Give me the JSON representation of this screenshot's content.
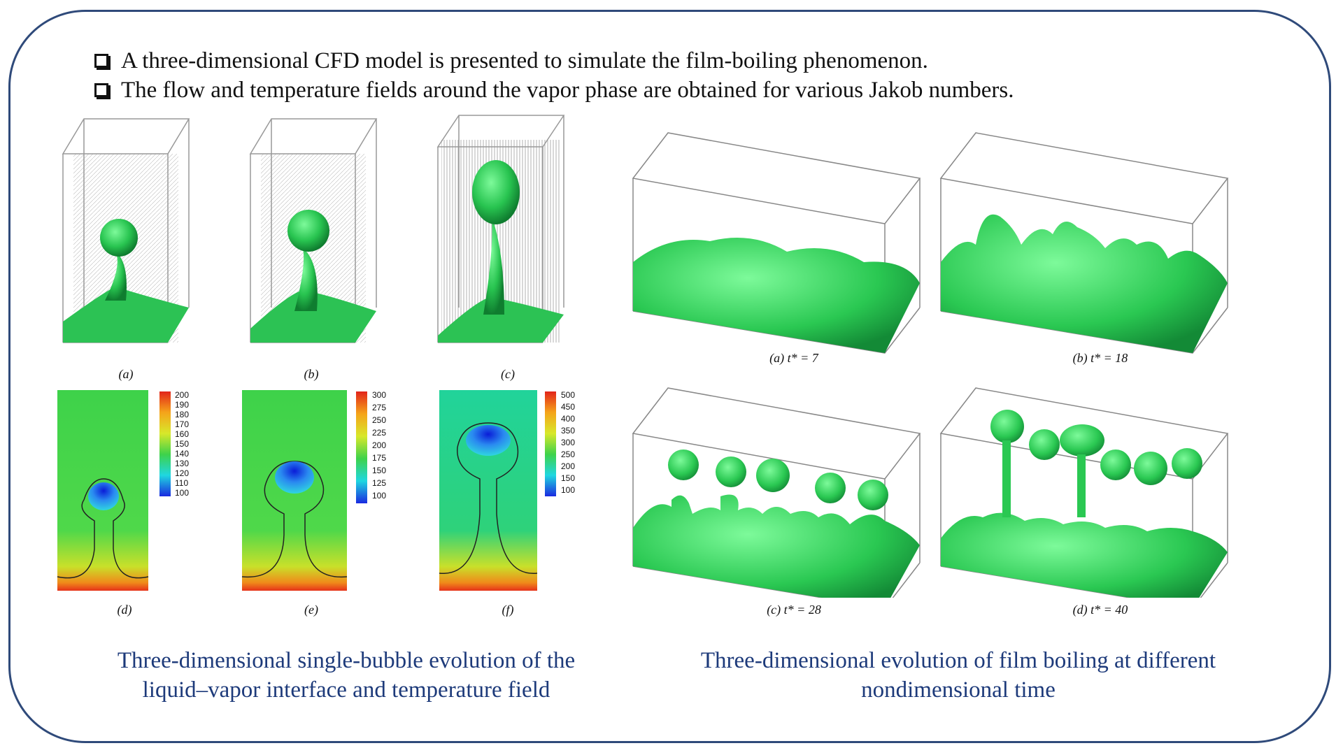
{
  "bullets": [
    "A three-dimensional CFD model is presented to simulate the film-boiling phenomenon.",
    "The flow and temperature fields around the vapor phase are obtained for various Jakob numbers."
  ],
  "left_labels": {
    "a": "(a)",
    "b": "(b)",
    "c": "(c)",
    "d": "(d)",
    "e": "(e)",
    "f": "(f)"
  },
  "colorbars": {
    "d": [
      "200",
      "190",
      "180",
      "170",
      "160",
      "150",
      "140",
      "130",
      "120",
      "110",
      "100"
    ],
    "e": [
      "300",
      "275",
      "250",
      "225",
      "200",
      "175",
      "150",
      "125",
      "100"
    ],
    "f": [
      "500",
      "450",
      "400",
      "350",
      "300",
      "250",
      "200",
      "150",
      "100"
    ]
  },
  "right_labels": {
    "a": "(a) t* = 7",
    "b": "(b) t* = 18",
    "c": "(c) t* = 28",
    "d": "(d) t* = 40"
  },
  "captions": {
    "left_line1": "Three-dimensional single-bubble evolution of the",
    "left_line2": "liquid–vapor interface and temperature field",
    "right_line1": "Three-dimensional evolution of film boiling at different",
    "right_line2": "nondimensional time"
  },
  "colors": {
    "frame": "#2f4a7a",
    "caption": "#1d3a7a",
    "vapor": "#2ecc5a"
  }
}
